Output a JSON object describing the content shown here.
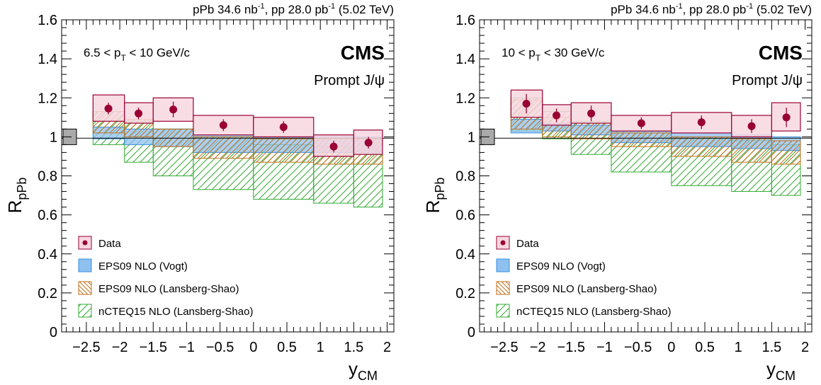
{
  "colors": {
    "data_marker": "#990033",
    "data_box_fill": "#f8d7e0",
    "data_box_stroke": "#990033",
    "vogt_fill": "#8ec0f0",
    "vogt_stroke": "#3b8fe0",
    "lansberg_eps_stroke": "#c0701a",
    "nc_stroke": "#33aa33",
    "global_box_fill": "#aaaaaa"
  },
  "chart_data": [
    {
      "type": "scatter",
      "header": "pPb 34.6 nb",
      "header_sup1": "-1",
      "header_mid": ", pp 28.0 pb",
      "header_sup2": "-1",
      "header_tail": " (5.02 TeV)",
      "experiment": "CMS",
      "particle": "Prompt J/ψ",
      "kin_lo": "6.5 < p",
      "kin_sub": "T",
      "kin_hi": " < 10 GeV/c",
      "xlabel_main": "y",
      "xlabel_sub": "CM",
      "ylabel_main": "R",
      "ylabel_sub": "pPb",
      "xlim": [
        -2.87,
        2.1
      ],
      "ylim": [
        0,
        1.6
      ],
      "xticks": [
        "-2.5",
        "-2",
        "-1.5",
        "-1",
        "-0.5",
        "0",
        "0.5",
        "1",
        "1.5",
        "2"
      ],
      "yticks": [
        "0",
        "0.2",
        "0.4",
        "0.6",
        "0.8",
        "1",
        "1.2",
        "1.4",
        "1.6"
      ],
      "global_uncertainty": [
        0.96,
        1.04
      ],
      "bins": [
        [
          -2.4,
          -1.93
        ],
        [
          -1.93,
          -1.5
        ],
        [
          -1.5,
          -0.9
        ],
        [
          -0.9,
          0
        ],
        [
          0,
          0.9
        ],
        [
          0.9,
          1.5
        ],
        [
          1.5,
          1.93
        ]
      ],
      "data": {
        "x": [
          -2.17,
          -1.72,
          -1.2,
          -0.45,
          0.45,
          1.2,
          1.72
        ],
        "y": [
          1.145,
          1.12,
          1.14,
          1.06,
          1.05,
          0.95,
          0.97
        ],
        "stat": [
          0.03,
          0.03,
          0.04,
          0.03,
          0.03,
          0.03,
          0.03
        ],
        "syst_lo": [
          1.08,
          1.07,
          1.08,
          1.01,
          1.0,
          0.9,
          0.91
        ],
        "syst_hi": [
          1.215,
          1.175,
          1.2,
          1.11,
          1.1,
          1.01,
          1.035
        ]
      },
      "eps09_vogt": {
        "lo": [
          0.99,
          0.96,
          0.95,
          0.92,
          0.92,
          0.92,
          0.92
        ],
        "hi": [
          1.05,
          1.04,
          1.04,
          1.01,
          1.0,
          1.0,
          1.0
        ]
      },
      "eps09_lansberg": {
        "lo": [
          1.02,
          1.0,
          0.95,
          0.89,
          0.87,
          0.86,
          0.86
        ],
        "hi": [
          1.13,
          1.09,
          1.04,
          1.0,
          0.99,
          0.99,
          0.99
        ]
      },
      "ncteq15_lansberg": {
        "lo": [
          0.96,
          0.87,
          0.8,
          0.73,
          0.68,
          0.66,
          0.64
        ],
        "hi": [
          1.13,
          1.08,
          1.04,
          1.0,
          0.96,
          0.95,
          0.93
        ]
      },
      "legend": [
        "Data",
        "EPS09 NLO (Vogt)",
        "EPS09 NLO (Lansberg-Shao)",
        "nCTEQ15 NLO (Lansberg-Shao)"
      ],
      "legend_position": "bottom-left"
    },
    {
      "type": "scatter",
      "header": "pPb 34.6 nb",
      "header_sup1": "-1",
      "header_mid": ", pp 28.0 pb",
      "header_sup2": "-1",
      "header_tail": " (5.02 TeV)",
      "experiment": "CMS",
      "particle": "Prompt J/ψ",
      "kin_lo": "10 < p",
      "kin_sub": "T",
      "kin_hi": " < 30 GeV/c",
      "xlabel_main": "y",
      "xlabel_sub": "CM",
      "ylabel_main": "R",
      "ylabel_sub": "pPb",
      "xlim": [
        -2.87,
        2.1
      ],
      "ylim": [
        0,
        1.6
      ],
      "xticks": [
        "-2.5",
        "-2",
        "-1.5",
        "-1",
        "-0.5",
        "0",
        "0.5",
        "1",
        "1.5",
        "2"
      ],
      "yticks": [
        "0",
        "0.2",
        "0.4",
        "0.6",
        "0.8",
        "1",
        "1.2",
        "1.4",
        "1.6"
      ],
      "global_uncertainty": [
        0.96,
        1.04
      ],
      "bins": [
        [
          -2.4,
          -1.93
        ],
        [
          -1.93,
          -1.5
        ],
        [
          -1.5,
          -0.9
        ],
        [
          -0.9,
          0
        ],
        [
          0,
          0.9
        ],
        [
          0.9,
          1.5
        ],
        [
          1.5,
          1.93
        ]
      ],
      "data": {
        "x": [
          -2.17,
          -1.72,
          -1.2,
          -0.45,
          0.45,
          1.2,
          1.72
        ],
        "y": [
          1.17,
          1.11,
          1.12,
          1.07,
          1.075,
          1.055,
          1.1
        ],
        "stat": [
          0.05,
          0.035,
          0.04,
          0.03,
          0.035,
          0.035,
          0.05
        ],
        "syst_lo": [
          1.1,
          1.06,
          1.07,
          1.03,
          1.02,
          1.0,
          1.03
        ],
        "syst_hi": [
          1.24,
          1.165,
          1.175,
          1.11,
          1.125,
          1.11,
          1.175
        ]
      },
      "eps09_vogt": {
        "lo": [
          1.02,
          1.03,
          1.01,
          0.97,
          0.95,
          0.94,
          0.93
        ],
        "hi": [
          1.09,
          1.07,
          1.06,
          1.03,
          1.02,
          1.01,
          1.0
        ]
      },
      "eps09_lansberg": {
        "lo": [
          1.04,
          1.0,
          0.99,
          0.95,
          0.9,
          0.87,
          0.86
        ],
        "hi": [
          1.19,
          1.1,
          1.07,
          1.02,
          1.0,
          0.99,
          0.98
        ]
      },
      "ncteq15_lansberg": {
        "lo": [
          1.03,
          0.99,
          0.91,
          0.82,
          0.75,
          0.72,
          0.7
        ],
        "hi": [
          1.2,
          1.13,
          1.08,
          1.03,
          0.99,
          0.98,
          0.96
        ]
      },
      "legend": [
        "Data",
        "EPS09 NLO (Vogt)",
        "EPS09 NLO (Lansberg-Shao)",
        "nCTEQ15 NLO (Lansberg-Shao)"
      ],
      "legend_position": "bottom-left"
    }
  ]
}
